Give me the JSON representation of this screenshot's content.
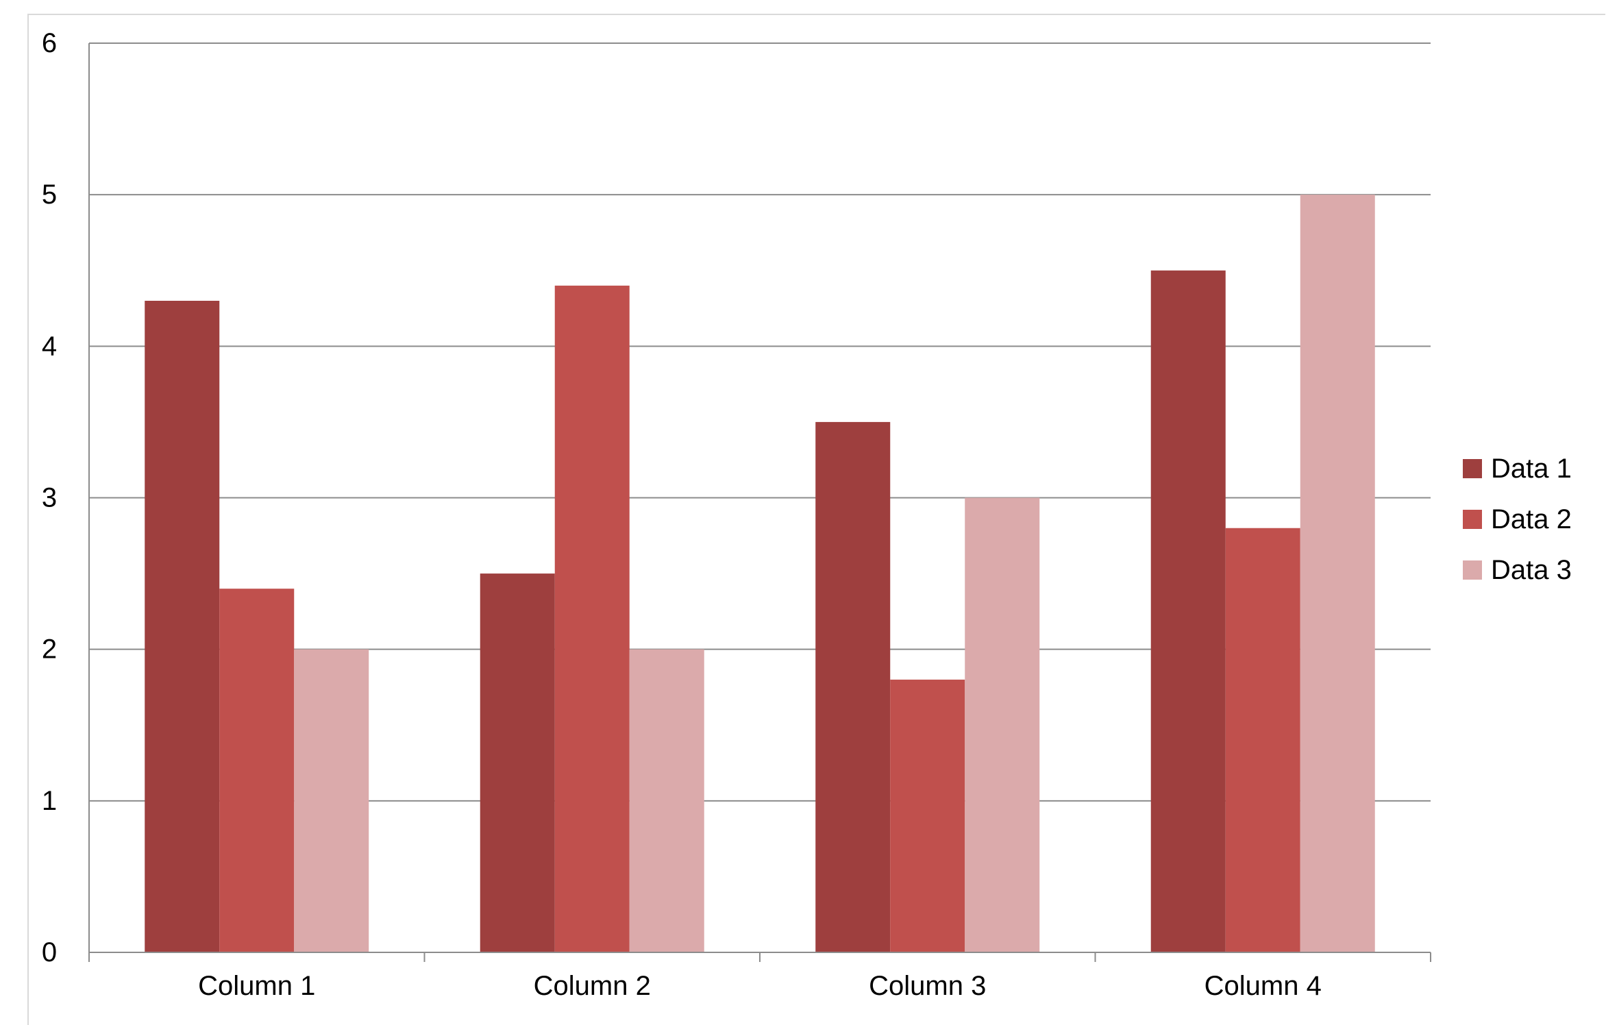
{
  "chart_data": {
    "type": "bar",
    "title": "",
    "xlabel": "",
    "ylabel": "",
    "categories": [
      "Column 1",
      "Column 2",
      "Column 3",
      "Column 4"
    ],
    "series": [
      {
        "name": "Data 1",
        "values": [
          4.3,
          2.5,
          3.5,
          4.5
        ],
        "color": "#9e3f3e"
      },
      {
        "name": "Data 2",
        "values": [
          2.4,
          4.4,
          1.8,
          2.8
        ],
        "color": "#c0504d"
      },
      {
        "name": "Data 3",
        "values": [
          2.0,
          2.0,
          3.0,
          5.0
        ],
        "color": "#dbaaab"
      }
    ],
    "ylim": [
      0,
      6
    ],
    "yticks": [
      "0",
      "1",
      "2",
      "3",
      "4",
      "5",
      "6"
    ],
    "grid": true,
    "legend_position": "right"
  }
}
